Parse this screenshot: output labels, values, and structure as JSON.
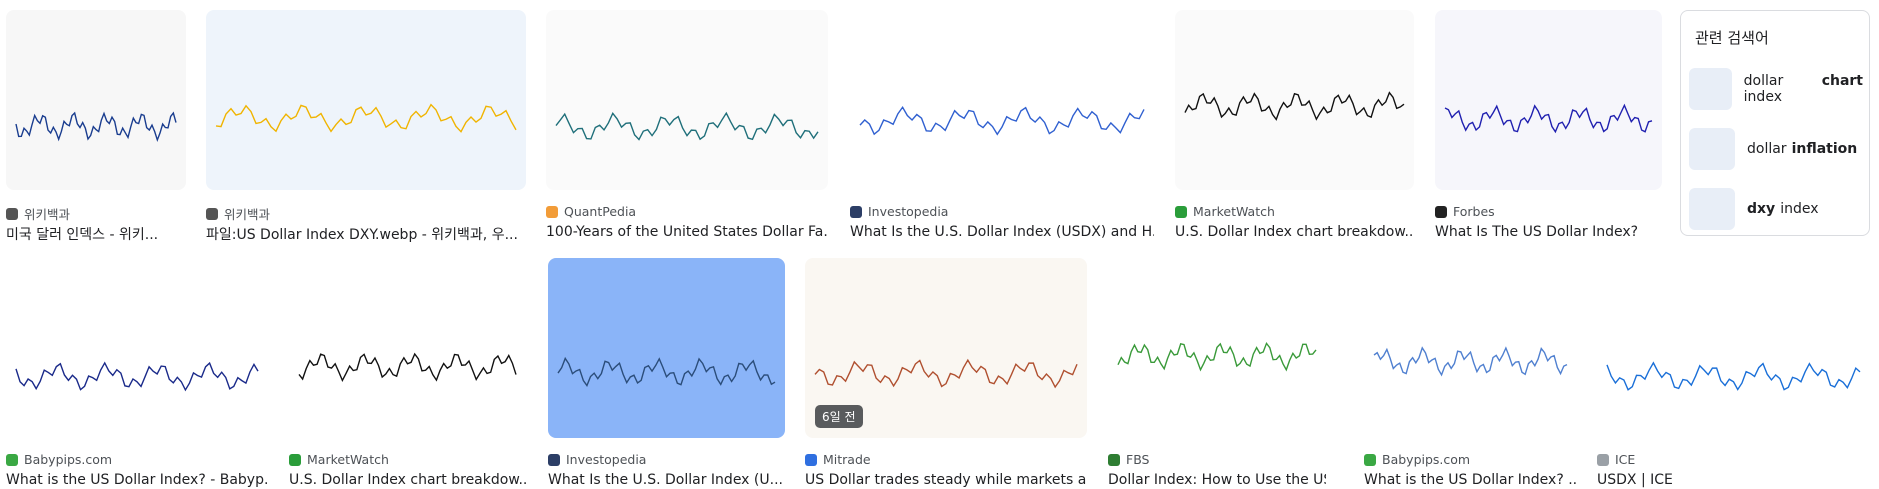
{
  "results": [
    {
      "source": "위키백과",
      "title": "미국 달러 인덱스 - 위키...",
      "icon_color": "#555555"
    },
    {
      "source": "위키백과",
      "title": "파일:US Dollar Index DXY.webp - 위키백과, 우...",
      "icon_color": "#555555"
    },
    {
      "source": "QuantPedia",
      "title": "100-Years of the United States Dollar Fa...",
      "icon_color": "#f29c38"
    },
    {
      "source": "Investopedia",
      "title": "What Is the U.S. Dollar Index (USDX) and H...",
      "icon_color": "#2c3e66"
    },
    {
      "source": "MarketWatch",
      "title": "U.S. Dollar Index chart breakdow...",
      "icon_color": "#2a9d3a"
    },
    {
      "source": "Forbes",
      "title": "What Is The US Dollar Index?",
      "icon_color": "#222222"
    },
    {
      "source": "Babypips.com",
      "title": "What is the US Dollar Index? - Babyp...",
      "icon_color": "#3aa843"
    },
    {
      "source": "MarketWatch",
      "title": "U.S. Dollar Index chart breakdow...",
      "icon_color": "#2a9d3a"
    },
    {
      "source": "Investopedia",
      "title": "What Is the U.S. Dollar Index (U...",
      "icon_color": "#2c3e66"
    },
    {
      "source": "Mitrade",
      "title": "US Dollar trades steady while markets a...",
      "icon_color": "#2f6fe0"
    },
    {
      "source": "FBS",
      "title": "Dollar Index: How to Use the US...",
      "icon_color": "#2e7d32"
    },
    {
      "source": "Babypips.com",
      "title": "What is the US Dollar Index? ...",
      "icon_color": "#3aa843"
    },
    {
      "source": "ICE",
      "title": "USDX | ICE",
      "icon_color": "#9aa0a6"
    }
  ],
  "badge": "6일 전",
  "related": {
    "title": "관련 검색어",
    "items": [
      {
        "parts": [
          {
            "text": "dollar index",
            "bold": false
          },
          {
            "text": "chart",
            "bold": true
          }
        ]
      },
      {
        "parts": [
          {
            "text": "dollar",
            "bold": false
          },
          {
            "text": "inflation",
            "bold": true
          }
        ]
      },
      {
        "parts": [
          {
            "text": "dxy",
            "bold": true
          },
          {
            "text": "index",
            "bold": false
          }
        ]
      }
    ]
  }
}
